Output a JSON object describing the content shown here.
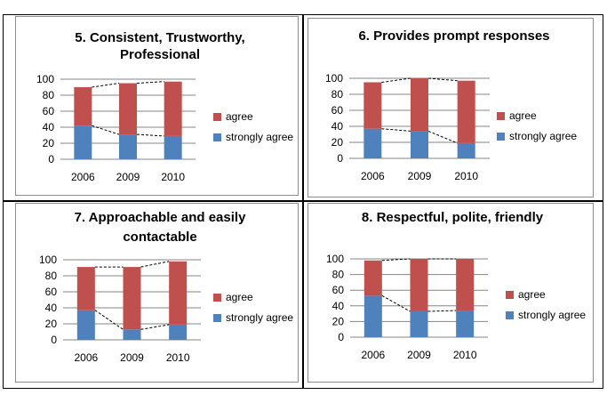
{
  "colors": {
    "agree": "#c0504d",
    "strongly_agree": "#4f81bd",
    "gridline": "#868686",
    "connector": "#000000"
  },
  "chart_data": [
    {
      "type": "bar",
      "stacked": true,
      "title": "5.  Consistent, Trustworthy, Professional",
      "title_lines": [
        "5.  Consistent, Trustworthy,",
        "Professional"
      ],
      "categories": [
        "2006",
        "2009",
        "2010"
      ],
      "ylim": [
        0,
        100
      ],
      "yticks": [
        "0",
        "20",
        "40",
        "60",
        "80",
        "100"
      ],
      "series": [
        {
          "name": "strongly agree",
          "values": [
            42,
            31,
            29
          ]
        },
        {
          "name": "agree",
          "values": [
            48,
            64,
            68
          ]
        }
      ],
      "legend": "right",
      "grid": true
    },
    {
      "type": "bar",
      "stacked": true,
      "title": "6.  Provides prompt responses",
      "title_lines": [
        "6.  Provides prompt responses"
      ],
      "categories": [
        "2006",
        "2009",
        "2010"
      ],
      "ylim": [
        0,
        100
      ],
      "yticks": [
        "0",
        "20",
        "40",
        "60",
        "80",
        "100"
      ],
      "series": [
        {
          "name": "strongly agree",
          "values": [
            37,
            34,
            19
          ]
        },
        {
          "name": "agree",
          "values": [
            58,
            66,
            78
          ]
        }
      ],
      "legend": "right",
      "grid": true
    },
    {
      "type": "bar",
      "stacked": true,
      "title": "7.  Approachable and easily contactable",
      "title_lines": [
        "7.  Approachable and easily",
        "contactable"
      ],
      "categories": [
        "2006",
        "2009",
        "2010"
      ],
      "ylim": [
        0,
        100
      ],
      "yticks": [
        "0",
        "20",
        "40",
        "60",
        "80",
        "100"
      ],
      "series": [
        {
          "name": "strongly agree",
          "values": [
            37,
            13,
            19
          ]
        },
        {
          "name": "agree",
          "values": [
            54,
            78,
            79
          ]
        }
      ],
      "legend": "right",
      "grid": true
    },
    {
      "type": "bar",
      "stacked": true,
      "title": "8.  Respectful, polite, friendly",
      "title_lines": [
        "8.  Respectful, polite, friendly"
      ],
      "categories": [
        "2006",
        "2009",
        "2010"
      ],
      "ylim": [
        0,
        100
      ],
      "yticks": [
        "0",
        "20",
        "40",
        "60",
        "80",
        "100"
      ],
      "series": [
        {
          "name": "strongly agree",
          "values": [
            53,
            33,
            34
          ]
        },
        {
          "name": "agree",
          "values": [
            45,
            67,
            66
          ]
        }
      ],
      "legend": "right",
      "grid": true
    }
  ]
}
